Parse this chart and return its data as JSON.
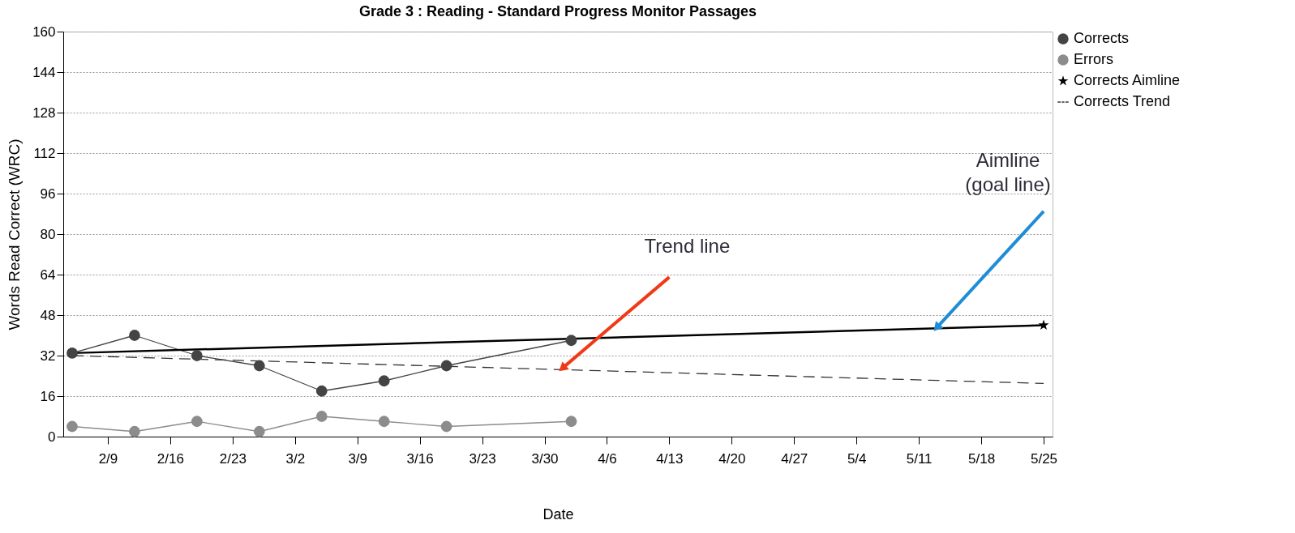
{
  "chart_data": {
    "type": "line",
    "title": "Grade 3 : Reading - Standard Progress Monitor Passages",
    "xlabel": "Date",
    "ylabel": "Words Read Correct (WRC)",
    "x": [
      "--02-05",
      "--02-12",
      "--02-19",
      "--02-26",
      "--03-05",
      "--03-12",
      "--03-19",
      "--04-02"
    ],
    "series": [
      {
        "name": "Corrects",
        "color": "#444444",
        "marker": "circle",
        "line_style": "solid",
        "values": [
          33,
          40,
          32,
          28,
          18,
          22,
          28,
          38
        ]
      },
      {
        "name": "Errors",
        "color": "#8c8c8c",
        "marker": "circle",
        "line_style": "solid",
        "values": [
          4,
          2,
          6,
          2,
          8,
          6,
          4,
          6
        ]
      },
      {
        "name": "Corrects Aimline",
        "color": "#000000",
        "marker": "star",
        "line_style": "solid",
        "x": [
          "--02-05",
          "--05-25"
        ],
        "values": [
          33,
          44
        ]
      },
      {
        "name": "Corrects Trend",
        "color": "#333333",
        "marker": "none",
        "line_style": "dashed",
        "x": [
          "--02-05",
          "--05-25"
        ],
        "values": [
          32,
          21
        ]
      }
    ],
    "xlim": [
      "--02-04",
      "--05-26"
    ],
    "xticks": [
      {
        "value": "--02-09",
        "label": "2/9"
      },
      {
        "value": "--02-16",
        "label": "2/16"
      },
      {
        "value": "--02-23",
        "label": "2/23"
      },
      {
        "value": "--03-02",
        "label": "3/2"
      },
      {
        "value": "--03-09",
        "label": "3/9"
      },
      {
        "value": "--03-16",
        "label": "3/16"
      },
      {
        "value": "--03-23",
        "label": "3/23"
      },
      {
        "value": "--03-30",
        "label": "3/30"
      },
      {
        "value": "--04-06",
        "label": "4/6"
      },
      {
        "value": "--04-13",
        "label": "4/13"
      },
      {
        "value": "--04-20",
        "label": "4/20"
      },
      {
        "value": "--04-27",
        "label": "4/27"
      },
      {
        "value": "--05-04",
        "label": "5/4"
      },
      {
        "value": "--05-11",
        "label": "5/11"
      },
      {
        "value": "--05-18",
        "label": "5/18"
      },
      {
        "value": "--05-25",
        "label": "5/25"
      }
    ],
    "ylim": [
      0,
      160
    ],
    "yticks": [
      0,
      16,
      32,
      48,
      64,
      80,
      96,
      112,
      128,
      144,
      160
    ],
    "grid": "y",
    "legend": "top right",
    "annotations": [
      {
        "text": "Trend line",
        "x": "--04-01",
        "y": 27
      },
      {
        "text": "Aimline\n(goal line)",
        "x": "--05-13",
        "y": 43
      }
    ]
  }
}
